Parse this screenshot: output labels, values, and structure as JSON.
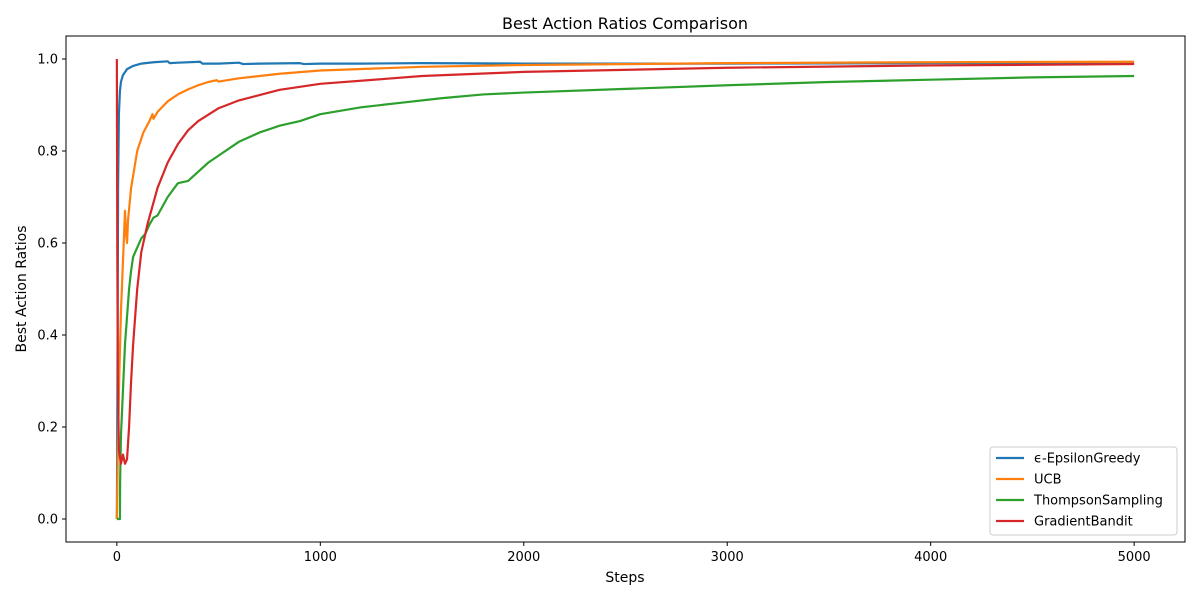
{
  "chart_data": {
    "type": "line",
    "title": "Best Action Ratios Comparison",
    "xlabel": "Steps",
    "ylabel": "Best Action Ratios",
    "xlim": [
      -250,
      5250
    ],
    "ylim": [
      -0.05,
      1.05
    ],
    "xticks": [
      0,
      1000,
      2000,
      3000,
      4000,
      5000
    ],
    "yticks": [
      0.0,
      0.2,
      0.4,
      0.6,
      0.8,
      1.0
    ],
    "xtick_labels": [
      "0",
      "1000",
      "2000",
      "3000",
      "4000",
      "5000"
    ],
    "ytick_labels": [
      "0.0",
      "0.2",
      "0.4",
      "0.6",
      "0.8",
      "1.0"
    ],
    "grid": false,
    "legend_position": "bottom-right",
    "series": [
      {
        "name": "ϵ-EpsilonGreedy",
        "color": "#1f77b4",
        "points": [
          [
            0,
            0.0
          ],
          [
            3,
            0.3
          ],
          [
            6,
            0.72
          ],
          [
            10,
            0.88
          ],
          [
            15,
            0.93
          ],
          [
            20,
            0.95
          ],
          [
            30,
            0.965
          ],
          [
            50,
            0.978
          ],
          [
            80,
            0.985
          ],
          [
            120,
            0.99
          ],
          [
            180,
            0.993
          ],
          [
            250,
            0.995
          ],
          [
            260,
            0.991
          ],
          [
            300,
            0.992
          ],
          [
            410,
            0.994
          ],
          [
            420,
            0.99
          ],
          [
            500,
            0.99
          ],
          [
            600,
            0.992
          ],
          [
            620,
            0.989
          ],
          [
            700,
            0.99
          ],
          [
            900,
            0.991
          ],
          [
            920,
            0.989
          ],
          [
            1000,
            0.99
          ],
          [
            1200,
            0.99
          ],
          [
            1500,
            0.991
          ],
          [
            2000,
            0.99
          ],
          [
            2500,
            0.99
          ],
          [
            3000,
            0.99
          ],
          [
            4000,
            0.991
          ],
          [
            5000,
            0.991
          ]
        ]
      },
      {
        "name": "UCB",
        "color": "#ff7f0e",
        "points": [
          [
            0,
            0.0
          ],
          [
            5,
            0.15
          ],
          [
            10,
            0.28
          ],
          [
            20,
            0.45
          ],
          [
            30,
            0.56
          ],
          [
            40,
            0.67
          ],
          [
            45,
            0.62
          ],
          [
            50,
            0.6
          ],
          [
            55,
            0.65
          ],
          [
            70,
            0.72
          ],
          [
            100,
            0.8
          ],
          [
            130,
            0.84
          ],
          [
            160,
            0.865
          ],
          [
            175,
            0.88
          ],
          [
            180,
            0.87
          ],
          [
            200,
            0.885
          ],
          [
            250,
            0.908
          ],
          [
            300,
            0.923
          ],
          [
            350,
            0.934
          ],
          [
            400,
            0.943
          ],
          [
            450,
            0.95
          ],
          [
            490,
            0.954
          ],
          [
            500,
            0.951
          ],
          [
            600,
            0.958
          ],
          [
            800,
            0.968
          ],
          [
            1000,
            0.975
          ],
          [
            1500,
            0.983
          ],
          [
            2000,
            0.987
          ],
          [
            3000,
            0.991
          ],
          [
            4000,
            0.993
          ],
          [
            5000,
            0.994
          ]
        ]
      },
      {
        "name": "ThompsonSampling",
        "color": "#2ca02c",
        "points": [
          [
            0,
            0.0
          ],
          [
            15,
            0.0
          ],
          [
            16,
            0.08
          ],
          [
            20,
            0.18
          ],
          [
            30,
            0.28
          ],
          [
            40,
            0.38
          ],
          [
            50,
            0.44
          ],
          [
            60,
            0.5
          ],
          [
            70,
            0.54
          ],
          [
            80,
            0.57
          ],
          [
            100,
            0.59
          ],
          [
            120,
            0.61
          ],
          [
            140,
            0.62
          ],
          [
            160,
            0.64
          ],
          [
            180,
            0.655
          ],
          [
            200,
            0.66
          ],
          [
            250,
            0.7
          ],
          [
            300,
            0.73
          ],
          [
            350,
            0.735
          ],
          [
            400,
            0.755
          ],
          [
            450,
            0.775
          ],
          [
            500,
            0.79
          ],
          [
            550,
            0.805
          ],
          [
            600,
            0.82
          ],
          [
            700,
            0.84
          ],
          [
            800,
            0.855
          ],
          [
            900,
            0.865
          ],
          [
            1000,
            0.88
          ],
          [
            1200,
            0.895
          ],
          [
            1400,
            0.905
          ],
          [
            1600,
            0.915
          ],
          [
            1800,
            0.923
          ],
          [
            2000,
            0.927
          ],
          [
            2500,
            0.935
          ],
          [
            3000,
            0.943
          ],
          [
            3500,
            0.95
          ],
          [
            4000,
            0.955
          ],
          [
            4500,
            0.96
          ],
          [
            5000,
            0.963
          ]
        ]
      },
      {
        "name": "GradientBandit",
        "color": "#d62728",
        "points": [
          [
            0,
            1.0
          ],
          [
            2,
            0.6
          ],
          [
            5,
            0.3
          ],
          [
            10,
            0.15
          ],
          [
            20,
            0.12
          ],
          [
            30,
            0.14
          ],
          [
            40,
            0.12
          ],
          [
            50,
            0.13
          ],
          [
            60,
            0.2
          ],
          [
            70,
            0.3
          ],
          [
            80,
            0.38
          ],
          [
            100,
            0.5
          ],
          [
            120,
            0.58
          ],
          [
            150,
            0.64
          ],
          [
            200,
            0.72
          ],
          [
            250,
            0.775
          ],
          [
            300,
            0.815
          ],
          [
            350,
            0.845
          ],
          [
            400,
            0.865
          ],
          [
            500,
            0.893
          ],
          [
            600,
            0.91
          ],
          [
            800,
            0.933
          ],
          [
            1000,
            0.946
          ],
          [
            1500,
            0.963
          ],
          [
            2000,
            0.972
          ],
          [
            3000,
            0.981
          ],
          [
            4000,
            0.986
          ],
          [
            5000,
            0.989
          ]
        ]
      }
    ]
  }
}
